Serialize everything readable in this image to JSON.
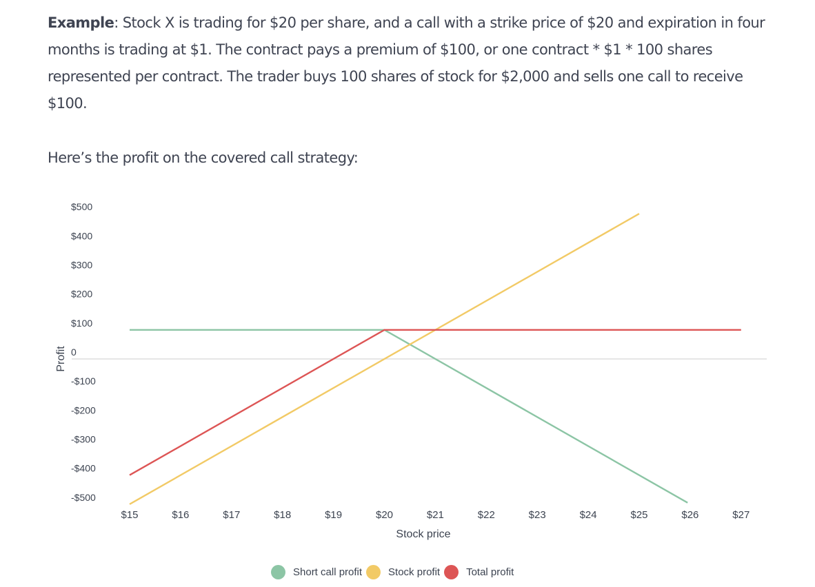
{
  "example": {
    "label": "Example",
    "text": ": Stock X is trading for $20 per share, and a call with a strike price of $20 and expiration in four months is trading at $1. The contract pays a premium of $100, or one contract * $1 * 100 shares represented per contract. The trader buys 100 shares of stock for $2,000 and sells one call to receive $100."
  },
  "intro": "Here’s the profit on the covered call strategy:",
  "chart_data": {
    "type": "line",
    "title": "",
    "xlabel": "Stock price",
    "ylabel": "Profit",
    "x": [
      15,
      16,
      17,
      18,
      19,
      20,
      21,
      22,
      23,
      24,
      25,
      26,
      27
    ],
    "x_tick_labels": [
      "$15",
      "$16",
      "$17",
      "$18",
      "$19",
      "$20",
      "$21",
      "$22",
      "$23",
      "$24",
      "$25",
      "$26",
      "$27"
    ],
    "y_tick_labels": [
      "$500",
      "$400",
      "$300",
      "$200",
      "$100",
      "0",
      "-$100",
      "-$200",
      "-$300",
      "-$400",
      "-$500"
    ],
    "y_ticks": [
      500,
      400,
      300,
      200,
      100,
      0,
      -100,
      -200,
      -300,
      -400,
      -500
    ],
    "ylim": [
      -500,
      500
    ],
    "xlim": [
      15,
      27
    ],
    "grid": "zero line only",
    "legend_position": "bottom",
    "series": [
      {
        "name": "Short call profit",
        "color": "#8cc5a5",
        "points": [
          [
            15,
            100
          ],
          [
            20,
            100
          ],
          [
            25.95,
            -495
          ]
        ]
      },
      {
        "name": "Stock profit",
        "color": "#f2ca66",
        "points": [
          [
            15,
            -500
          ],
          [
            25,
            500
          ]
        ]
      },
      {
        "name": "Total profit",
        "color": "#dd5555",
        "points": [
          [
            15,
            -400
          ],
          [
            20,
            100
          ],
          [
            27,
            100
          ]
        ]
      }
    ]
  },
  "legend": [
    {
      "label": "Short call profit",
      "color": "#8cc5a5"
    },
    {
      "label": "Stock profit",
      "color": "#f2ca66"
    },
    {
      "label": "Total profit",
      "color": "#dd5555"
    }
  ]
}
